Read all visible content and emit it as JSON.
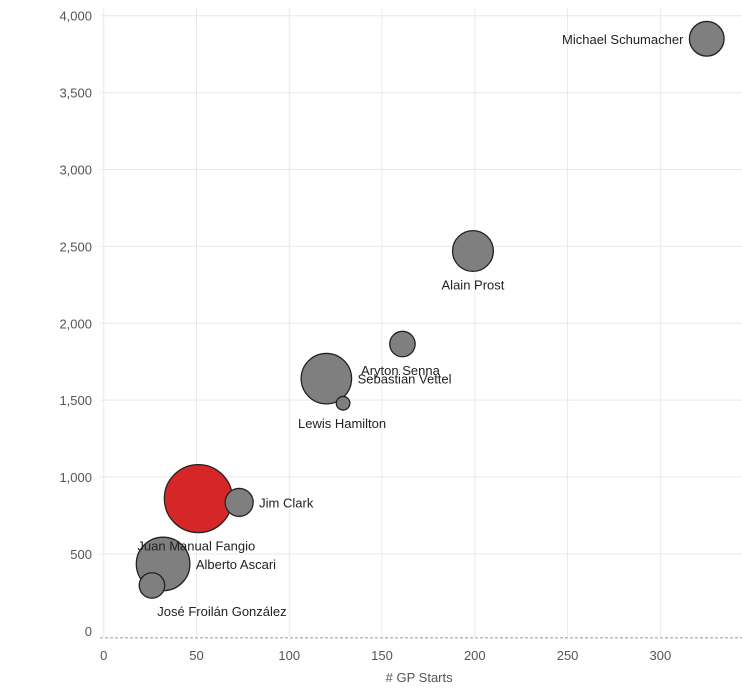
{
  "chart_data": {
    "type": "scatter",
    "title": "",
    "xlabel": "# GP Starts",
    "ylabel": "",
    "xlim": [
      -2,
      344
    ],
    "ylim": [
      -40,
      4050
    ],
    "x_ticks": [
      0,
      50,
      100,
      150,
      200,
      250,
      300
    ],
    "y_ticks": [
      0,
      500,
      1000,
      1500,
      2000,
      2500,
      3000,
      3500,
      4000
    ],
    "x_tick_labels": [
      "0",
      "50",
      "100",
      "150",
      "200",
      "250",
      "300"
    ],
    "y_tick_labels": [
      "0",
      "500",
      "1,000",
      "1,500",
      "2,000",
      "2,500",
      "3,000",
      "3,500",
      "4,000"
    ],
    "grid": true,
    "legend": "none",
    "colors": {
      "default": "#7f7f7f",
      "highlight": "#d62728"
    },
    "points": [
      {
        "label": "Michael Schumacher",
        "x": 325,
        "y": 3850,
        "size": 0.26,
        "highlight": false
      },
      {
        "label": "Alain Prost",
        "x": 199,
        "y": 2470,
        "size": 0.36,
        "highlight": false
      },
      {
        "label": "Aryton Senna",
        "x": 161,
        "y": 1865,
        "size": 0.14,
        "highlight": false
      },
      {
        "label": "Sebastian Vettel",
        "x": 120,
        "y": 1640,
        "size": 0.55,
        "highlight": false
      },
      {
        "label": "Lewis Hamilton",
        "x": 129,
        "y": 1480,
        "size": 0.04,
        "highlight": false
      },
      {
        "label": "Jim Clark",
        "x": 73,
        "y": 835,
        "size": 0.17,
        "highlight": false
      },
      {
        "label": "Juan Manual Fangio",
        "x": 51,
        "y": 860,
        "size": 1.0,
        "highlight": true
      },
      {
        "label": "Alberto Ascari",
        "x": 32,
        "y": 435,
        "size": 0.62,
        "highlight": false
      },
      {
        "label": "José Froilán González",
        "x": 26,
        "y": 295,
        "size": 0.14,
        "highlight": false
      }
    ]
  }
}
